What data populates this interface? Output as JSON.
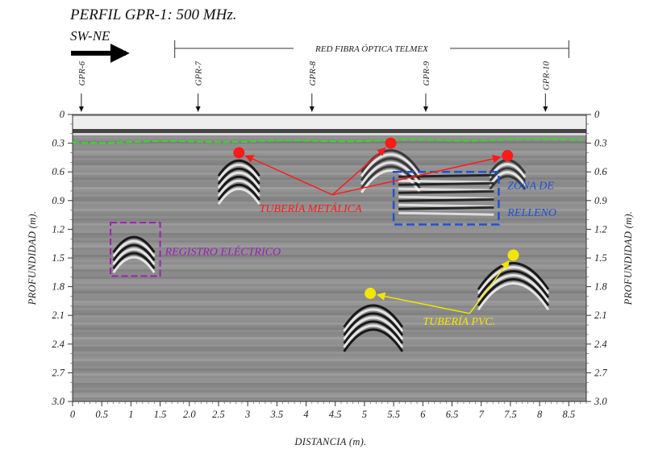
{
  "header": {
    "title": "PERFIL GPR-1: 500 MHz.",
    "direction": "SW-NE"
  },
  "network_span": {
    "label": "RED FIBRA ÓPTICA TELMEX",
    "x_start": 1.75,
    "x_end": 8.5
  },
  "gpr_markers": [
    {
      "label": "GPR-6",
      "x": 0.15
    },
    {
      "label": "GPR-7",
      "x": 2.15
    },
    {
      "label": "GPR-8",
      "x": 4.1
    },
    {
      "label": "GPR-9",
      "x": 6.05
    },
    {
      "label": "GPR-10",
      "x": 8.1
    }
  ],
  "x_axis": {
    "title": "DISTANCIA (m).",
    "range": [
      0,
      8.8
    ],
    "ticks": [
      {
        "value": 0,
        "label": "0"
      },
      {
        "value": 0.5,
        "label": "0.5"
      },
      {
        "value": 1,
        "label": "1"
      },
      {
        "value": 1.5,
        "label": "1.5"
      },
      {
        "value": 2,
        "label": "2.0"
      },
      {
        "value": 2.5,
        "label": "2.5"
      },
      {
        "value": 3,
        "label": "3"
      },
      {
        "value": 3.5,
        "label": "3.5"
      },
      {
        "value": 4,
        "label": "4"
      },
      {
        "value": 4.5,
        "label": "4.5"
      },
      {
        "value": 5,
        "label": "5"
      },
      {
        "value": 5.5,
        "label": "5.5"
      },
      {
        "value": 6,
        "label": "6"
      },
      {
        "value": 6.5,
        "label": "6.5"
      },
      {
        "value": 7,
        "label": "7"
      },
      {
        "value": 7.5,
        "label": "7.5"
      },
      {
        "value": 8,
        "label": "8"
      },
      {
        "value": 8.5,
        "label": "8.5"
      }
    ]
  },
  "y_axis": {
    "title": "PROFUNDIDAD (m).",
    "range": [
      0,
      3.0
    ],
    "ticks": [
      {
        "value": 0,
        "label": "0"
      },
      {
        "value": 0.3,
        "label": "0.3"
      },
      {
        "value": 0.6,
        "label": "0.6"
      },
      {
        "value": 0.9,
        "label": "0.9"
      },
      {
        "value": 1.2,
        "label": "1.2"
      },
      {
        "value": 1.5,
        "label": "1.5"
      },
      {
        "value": 1.8,
        "label": "1.8"
      },
      {
        "value": 2.1,
        "label": "2.1"
      },
      {
        "value": 2.4,
        "label": "2.4"
      },
      {
        "value": 2.7,
        "label": "2.7"
      },
      {
        "value": 3.0,
        "label": "3.0"
      }
    ]
  },
  "annotations": {
    "metal_pipe": {
      "label": "TUBERÍA METÁLICA",
      "color": "#ff1a1a",
      "points": [
        {
          "x": 2.85,
          "y": 0.4
        },
        {
          "x": 5.45,
          "y": 0.3
        },
        {
          "x": 7.45,
          "y": 0.43
        }
      ]
    },
    "pvc_pipe": {
      "label": "TUBERÍA PVC.",
      "color": "#f2e600",
      "points": [
        {
          "x": 5.1,
          "y": 1.87
        },
        {
          "x": 7.55,
          "y": 1.47
        }
      ]
    },
    "electric_box": {
      "label": "REGISTRO ELÉCTRICO",
      "color": "#9a22b5",
      "box": {
        "x1": 0.65,
        "x2": 1.5,
        "y1": 1.13,
        "y2": 1.69
      }
    },
    "fill_zone": {
      "label_line1": "ZONA DE",
      "label_line2": "RELLENO",
      "color": "#1f52d6",
      "box": {
        "x1": 5.5,
        "x2": 7.3,
        "y1": 0.6,
        "y2": 1.15
      }
    },
    "ground_line_color": "#33dd22"
  }
}
